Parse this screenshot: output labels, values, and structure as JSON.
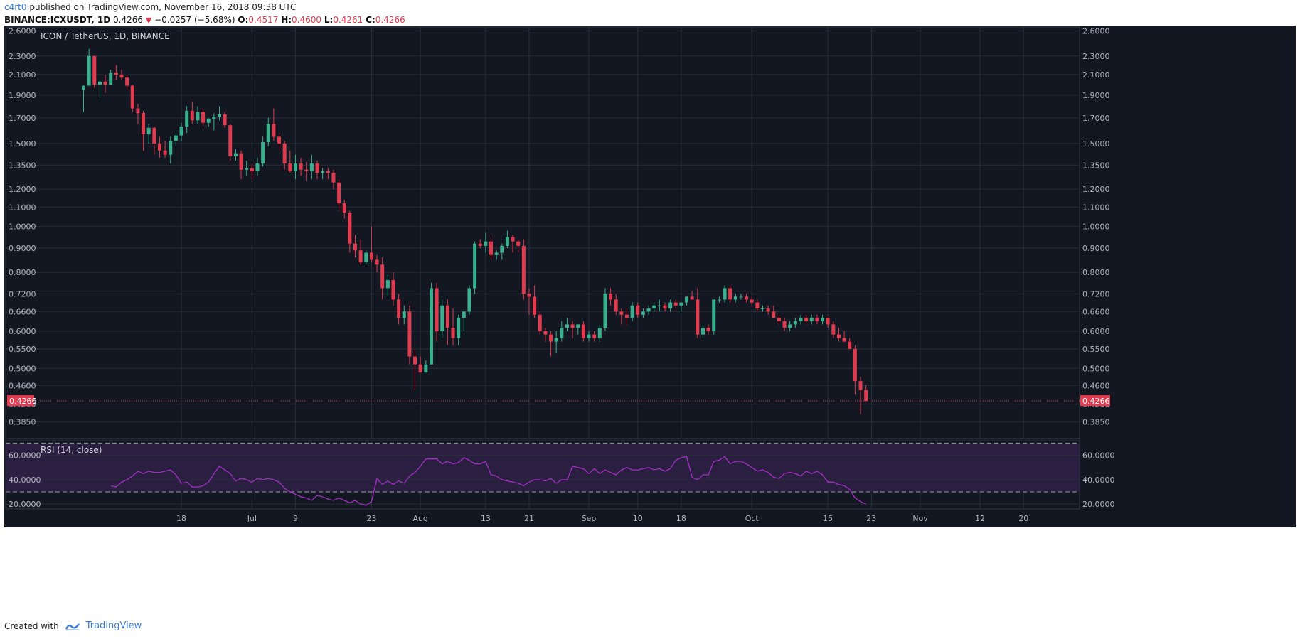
{
  "header": {
    "author": "c4rt0",
    "published": "published on TradingView.com, November 16, 2018 09:38 UTC",
    "symbol": "BINANCE:ICXUSDT, 1D",
    "last": "0.4266",
    "change": "−0.0257 (−5.68%)",
    "o_label": "O:",
    "o": "0.4517",
    "h_label": "H:",
    "h": "0.4600",
    "l_label": "L:",
    "l": "0.4261",
    "c_label": "C:",
    "c": "0.4266"
  },
  "footer": {
    "created_with": "Created with",
    "brand": "TradingView"
  },
  "colors": {
    "bg": "#131722",
    "up": "#3bb08f",
    "down": "#e03b4e",
    "grid": "#2a2e39",
    "rsi": "#a22fc4",
    "rsi_band": "#2a1f40",
    "axis_text": "#b2b5be",
    "price_tag": "#e03b4e"
  },
  "chart_data": {
    "type": "candlestick",
    "title": "ICON / TetherUS, 1D, BINANCE",
    "last_price": "0.4266",
    "x_ticks": [
      {
        "label": "18",
        "x": 18
      },
      {
        "label": "Jul",
        "x": 31
      },
      {
        "label": "9",
        "x": 39
      },
      {
        "label": "23",
        "x": 53
      },
      {
        "label": "Aug",
        "x": 62
      },
      {
        "label": "13",
        "x": 74
      },
      {
        "label": "21",
        "x": 82
      },
      {
        "label": "Sep",
        "x": 93
      },
      {
        "label": "10",
        "x": 102
      },
      {
        "label": "18",
        "x": 110
      },
      {
        "label": "Oct",
        "x": 123
      },
      {
        "label": "15",
        "x": 137
      },
      {
        "label": "23",
        "x": 145
      },
      {
        "label": "Nov",
        "x": 154
      },
      {
        "label": "12",
        "x": 165
      },
      {
        "label": "20",
        "x": 173
      }
    ],
    "y_ticks": [
      "2.6000",
      "2.3000",
      "2.1000",
      "1.9000",
      "1.7000",
      "1.5000",
      "1.3500",
      "1.2000",
      "1.1000",
      "1.0000",
      "0.9000",
      "0.8000",
      "0.7200",
      "0.6600",
      "0.6000",
      "0.5500",
      "0.5000",
      "0.4600",
      "0.4200",
      "0.3850"
    ],
    "price_range": [
      0.355,
      2.65
    ],
    "candles": [
      [
        1.95,
        1.99,
        1.75,
        1.99
      ],
      [
        1.99,
        2.38,
        1.99,
        2.3
      ],
      [
        2.3,
        2.3,
        1.97,
        2.0
      ],
      [
        2.0,
        2.05,
        1.88,
        2.03
      ],
      [
        2.03,
        2.1,
        1.92,
        2.0
      ],
      [
        2.0,
        2.15,
        2.0,
        2.12
      ],
      [
        2.12,
        2.2,
        2.05,
        2.1
      ],
      [
        2.1,
        2.15,
        2.05,
        2.07
      ],
      [
        2.07,
        2.1,
        1.95,
        1.99
      ],
      [
        1.99,
        2.0,
        1.75,
        1.78
      ],
      [
        1.78,
        1.82,
        1.65,
        1.74
      ],
      [
        1.74,
        1.76,
        1.45,
        1.57
      ],
      [
        1.57,
        1.65,
        1.5,
        1.62
      ],
      [
        1.62,
        1.63,
        1.42,
        1.5
      ],
      [
        1.5,
        1.55,
        1.4,
        1.45
      ],
      [
        1.45,
        1.52,
        1.4,
        1.42
      ],
      [
        1.42,
        1.55,
        1.36,
        1.52
      ],
      [
        1.52,
        1.58,
        1.48,
        1.56
      ],
      [
        1.56,
        1.66,
        1.52,
        1.63
      ],
      [
        1.63,
        1.8,
        1.58,
        1.76
      ],
      [
        1.76,
        1.84,
        1.65,
        1.68
      ],
      [
        1.68,
        1.8,
        1.65,
        1.75
      ],
      [
        1.75,
        1.78,
        1.63,
        1.66
      ],
      [
        1.66,
        1.7,
        1.63,
        1.69
      ],
      [
        1.69,
        1.74,
        1.6,
        1.71
      ],
      [
        1.71,
        1.8,
        1.68,
        1.73
      ],
      [
        1.73,
        1.75,
        1.62,
        1.64
      ],
      [
        1.64,
        1.65,
        1.38,
        1.41
      ],
      [
        1.41,
        1.46,
        1.38,
        1.43
      ],
      [
        1.43,
        1.45,
        1.26,
        1.32
      ],
      [
        1.32,
        1.38,
        1.28,
        1.33
      ],
      [
        1.33,
        1.36,
        1.26,
        1.31
      ],
      [
        1.31,
        1.4,
        1.28,
        1.36
      ],
      [
        1.36,
        1.55,
        1.34,
        1.51
      ],
      [
        1.51,
        1.7,
        1.48,
        1.65
      ],
      [
        1.65,
        1.78,
        1.52,
        1.55
      ],
      [
        1.55,
        1.58,
        1.45,
        1.5
      ],
      [
        1.5,
        1.52,
        1.32,
        1.36
      ],
      [
        1.36,
        1.45,
        1.3,
        1.31
      ],
      [
        1.31,
        1.42,
        1.26,
        1.36
      ],
      [
        1.36,
        1.4,
        1.28,
        1.32
      ],
      [
        1.32,
        1.37,
        1.25,
        1.31
      ],
      [
        1.31,
        1.42,
        1.26,
        1.36
      ],
      [
        1.36,
        1.38,
        1.26,
        1.3
      ],
      [
        1.3,
        1.33,
        1.26,
        1.31
      ],
      [
        1.31,
        1.33,
        1.26,
        1.3
      ],
      [
        1.3,
        1.32,
        1.2,
        1.24
      ],
      [
        1.24,
        1.26,
        1.08,
        1.12
      ],
      [
        1.12,
        1.14,
        1.04,
        1.07
      ],
      [
        1.07,
        1.08,
        0.88,
        0.92
      ],
      [
        0.92,
        0.96,
        0.86,
        0.89
      ],
      [
        0.89,
        0.94,
        0.83,
        0.84
      ],
      [
        0.84,
        0.89,
        0.83,
        0.88
      ],
      [
        0.88,
        1.0,
        0.84,
        0.85
      ],
      [
        0.85,
        0.87,
        0.8,
        0.83
      ],
      [
        0.83,
        0.86,
        0.7,
        0.74
      ],
      [
        0.74,
        0.79,
        0.71,
        0.77
      ],
      [
        0.77,
        0.8,
        0.68,
        0.7
      ],
      [
        0.7,
        0.72,
        0.62,
        0.64
      ],
      [
        0.64,
        0.68,
        0.62,
        0.66
      ],
      [
        0.66,
        0.68,
        0.51,
        0.53
      ],
      [
        0.53,
        0.55,
        0.45,
        0.51
      ],
      [
        0.51,
        0.53,
        0.49,
        0.49
      ],
      [
        0.49,
        0.52,
        0.49,
        0.51
      ],
      [
        0.51,
        0.76,
        0.51,
        0.74
      ],
      [
        0.74,
        0.76,
        0.57,
        0.6
      ],
      [
        0.6,
        0.7,
        0.58,
        0.68
      ],
      [
        0.68,
        0.7,
        0.56,
        0.61
      ],
      [
        0.61,
        0.67,
        0.56,
        0.58
      ],
      [
        0.58,
        0.65,
        0.56,
        0.64
      ],
      [
        0.64,
        0.66,
        0.6,
        0.66
      ],
      [
        0.66,
        0.75,
        0.65,
        0.74
      ],
      [
        0.74,
        0.93,
        0.72,
        0.92
      ],
      [
        0.92,
        0.94,
        0.9,
        0.91
      ],
      [
        0.91,
        0.97,
        0.88,
        0.93
      ],
      [
        0.93,
        0.95,
        0.85,
        0.87
      ],
      [
        0.87,
        0.89,
        0.85,
        0.88
      ],
      [
        0.88,
        0.92,
        0.85,
        0.91
      ],
      [
        0.91,
        0.98,
        0.9,
        0.95
      ],
      [
        0.95,
        0.96,
        0.88,
        0.93
      ],
      [
        0.93,
        0.94,
        0.88,
        0.91
      ],
      [
        0.91,
        0.94,
        0.7,
        0.72
      ],
      [
        0.72,
        0.74,
        0.65,
        0.71
      ],
      [
        0.71,
        0.75,
        0.64,
        0.65
      ],
      [
        0.65,
        0.66,
        0.59,
        0.6
      ],
      [
        0.6,
        0.61,
        0.57,
        0.59
      ],
      [
        0.59,
        0.6,
        0.53,
        0.57
      ],
      [
        0.57,
        0.6,
        0.54,
        0.58
      ],
      [
        0.58,
        0.63,
        0.57,
        0.61
      ],
      [
        0.61,
        0.64,
        0.6,
        0.62
      ],
      [
        0.62,
        0.63,
        0.58,
        0.61
      ],
      [
        0.61,
        0.62,
        0.59,
        0.62
      ],
      [
        0.62,
        0.63,
        0.57,
        0.58
      ],
      [
        0.58,
        0.6,
        0.57,
        0.59
      ],
      [
        0.59,
        0.6,
        0.57,
        0.58
      ],
      [
        0.58,
        0.62,
        0.57,
        0.61
      ],
      [
        0.61,
        0.74,
        0.6,
        0.72
      ],
      [
        0.72,
        0.74,
        0.68,
        0.7
      ],
      [
        0.7,
        0.72,
        0.65,
        0.66
      ],
      [
        0.66,
        0.67,
        0.62,
        0.65
      ],
      [
        0.65,
        0.67,
        0.62,
        0.64
      ],
      [
        0.64,
        0.69,
        0.63,
        0.68
      ],
      [
        0.68,
        0.69,
        0.64,
        0.65
      ],
      [
        0.65,
        0.67,
        0.64,
        0.66
      ],
      [
        0.66,
        0.68,
        0.65,
        0.67
      ],
      [
        0.67,
        0.69,
        0.66,
        0.68
      ],
      [
        0.68,
        0.7,
        0.66,
        0.68
      ],
      [
        0.68,
        0.69,
        0.66,
        0.67
      ],
      [
        0.67,
        0.7,
        0.66,
        0.69
      ],
      [
        0.69,
        0.7,
        0.67,
        0.68
      ],
      [
        0.68,
        0.69,
        0.66,
        0.69
      ],
      [
        0.69,
        0.71,
        0.68,
        0.71
      ],
      [
        0.71,
        0.73,
        0.7,
        0.7
      ],
      [
        0.7,
        0.74,
        0.58,
        0.59
      ],
      [
        0.59,
        0.62,
        0.58,
        0.61
      ],
      [
        0.61,
        0.62,
        0.59,
        0.6
      ],
      [
        0.6,
        0.7,
        0.59,
        0.7
      ],
      [
        0.7,
        0.71,
        0.69,
        0.7
      ],
      [
        0.7,
        0.75,
        0.69,
        0.74
      ],
      [
        0.74,
        0.75,
        0.69,
        0.7
      ],
      [
        0.7,
        0.72,
        0.69,
        0.71
      ],
      [
        0.71,
        0.72,
        0.7,
        0.71
      ],
      [
        0.71,
        0.72,
        0.69,
        0.7
      ],
      [
        0.7,
        0.71,
        0.68,
        0.69
      ],
      [
        0.69,
        0.7,
        0.66,
        0.67
      ],
      [
        0.67,
        0.68,
        0.66,
        0.67
      ],
      [
        0.67,
        0.68,
        0.65,
        0.66
      ],
      [
        0.66,
        0.68,
        0.64,
        0.64
      ],
      [
        0.64,
        0.65,
        0.62,
        0.63
      ],
      [
        0.63,
        0.64,
        0.6,
        0.61
      ],
      [
        0.61,
        0.63,
        0.6,
        0.62
      ],
      [
        0.62,
        0.64,
        0.61,
        0.63
      ],
      [
        0.63,
        0.65,
        0.62,
        0.64
      ],
      [
        0.64,
        0.65,
        0.62,
        0.63
      ],
      [
        0.63,
        0.65,
        0.62,
        0.64
      ],
      [
        0.64,
        0.65,
        0.62,
        0.63
      ],
      [
        0.63,
        0.65,
        0.62,
        0.64
      ],
      [
        0.64,
        0.64,
        0.61,
        0.62
      ],
      [
        0.62,
        0.63,
        0.58,
        0.59
      ],
      [
        0.59,
        0.61,
        0.57,
        0.58
      ],
      [
        0.58,
        0.6,
        0.57,
        0.57
      ],
      [
        0.57,
        0.58,
        0.55,
        0.55
      ],
      [
        0.55,
        0.56,
        0.44,
        0.47
      ],
      [
        0.47,
        0.48,
        0.4,
        0.45
      ],
      [
        0.45,
        0.46,
        0.4261,
        0.4266
      ]
    ],
    "rsi": {
      "label": "RSI (14, close)",
      "ticks": [
        "60.0000",
        "40.0000",
        "20.0000"
      ],
      "upper": 70,
      "lower": 30,
      "range": [
        16,
        72
      ],
      "values": [
        35,
        34,
        38,
        40,
        43,
        47,
        45,
        47,
        46,
        46,
        47,
        48,
        44,
        37,
        38,
        34,
        34,
        35,
        38,
        45,
        51,
        48,
        45,
        39,
        41,
        40,
        38,
        41,
        40,
        41,
        40,
        38,
        33,
        30,
        28,
        26,
        25,
        23,
        27,
        26,
        24,
        23,
        25,
        23,
        21,
        23,
        20,
        19,
        22,
        41,
        36,
        39,
        36,
        39,
        37,
        43,
        46,
        51,
        57,
        57,
        57,
        53,
        55,
        53,
        54,
        58,
        56,
        53,
        53,
        55,
        44,
        43,
        40,
        39,
        38,
        37,
        35,
        38,
        40,
        40,
        39,
        41,
        37,
        40,
        40,
        51,
        50,
        49,
        45,
        49,
        45,
        48,
        46,
        44,
        48,
        50,
        48,
        48,
        49,
        50,
        48,
        49,
        47,
        49,
        56,
        58,
        59,
        42,
        40,
        44,
        44,
        55,
        56,
        59,
        53,
        55,
        55,
        53,
        50,
        47,
        48,
        46,
        42,
        41,
        45,
        46,
        45,
        43,
        47,
        45,
        47,
        44,
        38,
        38,
        36,
        35,
        32,
        25,
        22,
        20
      ]
    }
  }
}
